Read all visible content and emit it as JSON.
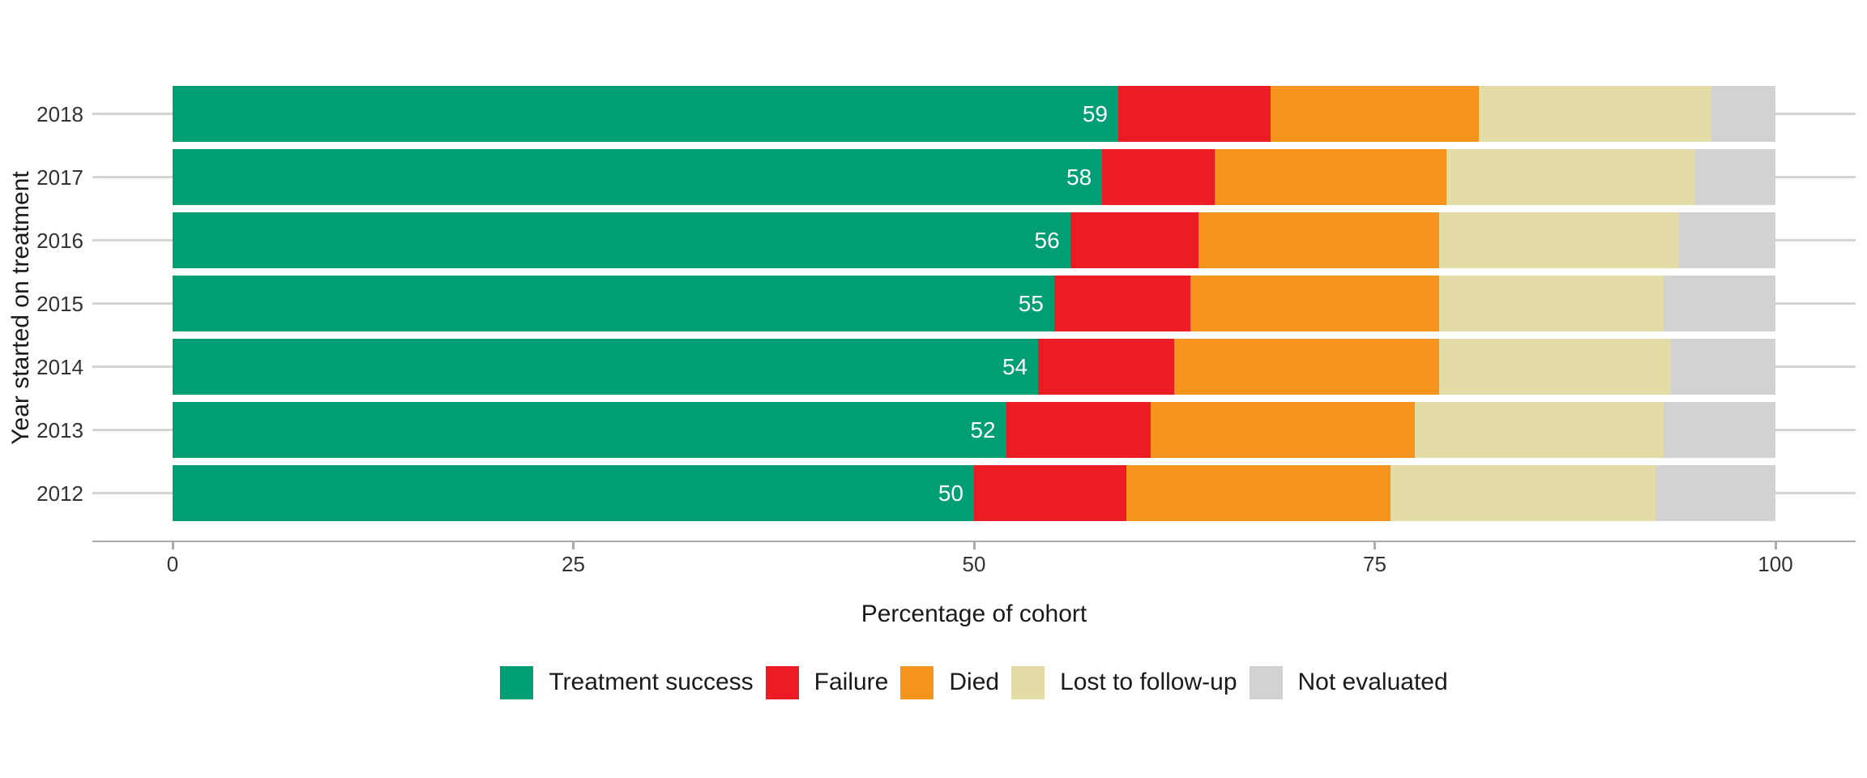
{
  "chart_data": {
    "type": "bar",
    "orientation": "horizontal",
    "stacked": true,
    "title": "",
    "xlabel": "Percentage of cohort",
    "ylabel": "Year started on treatment",
    "categories": [
      "2018",
      "2017",
      "2016",
      "2015",
      "2014",
      "2013",
      "2012"
    ],
    "series": [
      {
        "name": "Treatment success",
        "color": "#009E73",
        "values": [
          59,
          58,
          56,
          55,
          54,
          52,
          50
        ],
        "labels": [
          "59",
          "58",
          "56",
          "55",
          "54",
          "52",
          "50"
        ],
        "label_color": "#ffffff"
      },
      {
        "name": "Failure",
        "color": "#EC1C24",
        "values": [
          9.5,
          7,
          8,
          8.5,
          8.5,
          9,
          9.5
        ]
      },
      {
        "name": "Died",
        "color": "#F7941E",
        "values": [
          13,
          14.5,
          15,
          15.5,
          16.5,
          16.5,
          16.5
        ]
      },
      {
        "name": "Lost to follow-up",
        "color": "#E3DCA6",
        "values": [
          14.5,
          15.5,
          15,
          14,
          14.5,
          15.5,
          16.5
        ]
      },
      {
        "name": "Not evaluated",
        "color": "#D2D2D2",
        "values": [
          4,
          5,
          6,
          7,
          6.5,
          7,
          7.5
        ]
      }
    ],
    "x_ticks": [
      0,
      25,
      50,
      75,
      100
    ],
    "xlim": [
      0,
      100
    ],
    "grid": "horizontal category gridlines only",
    "gridline_color": "#d4d4d4",
    "axis_line_color": "#ababab",
    "legend_position": "bottom"
  }
}
